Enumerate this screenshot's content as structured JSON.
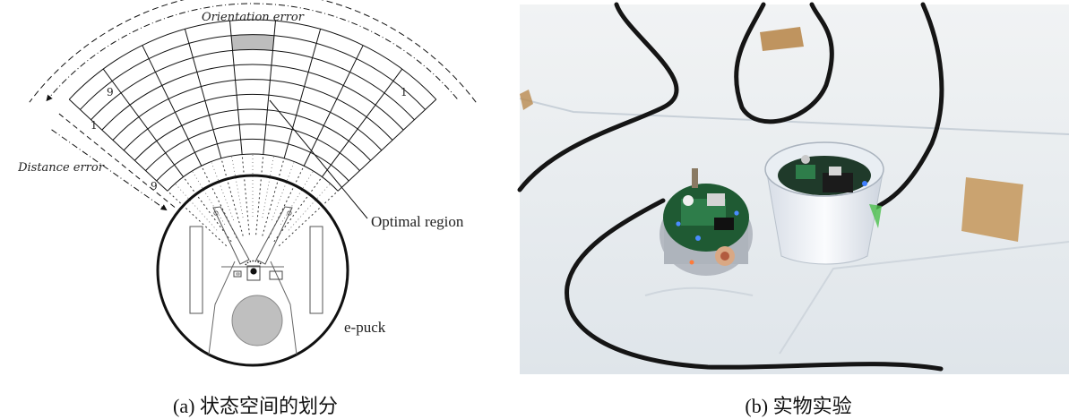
{
  "panel_a": {
    "orientation_label": "Orientation error",
    "distance_label": "Distance error",
    "orientation_start": "9",
    "orientation_end": "1",
    "distance_start": "1",
    "distance_end": "9",
    "optimal_region_label": "Optimal region",
    "robot_label": "e-puck",
    "grid": {
      "orientation_sectors": 9,
      "distance_rings": 9,
      "optimal_sector": 5,
      "optimal_ring": 2
    },
    "caption": "(a)  状态空间的划分"
  },
  "panel_b": {
    "caption": "(b)  实物实验",
    "photo_subject": "two e-puck robots on a white floor with black line track"
  },
  "colors": {
    "line": "#111111",
    "optimal_fill": "#bdbdbd",
    "floor": "#e9edf0",
    "track": "#151515",
    "tape": "#b98a4f"
  }
}
